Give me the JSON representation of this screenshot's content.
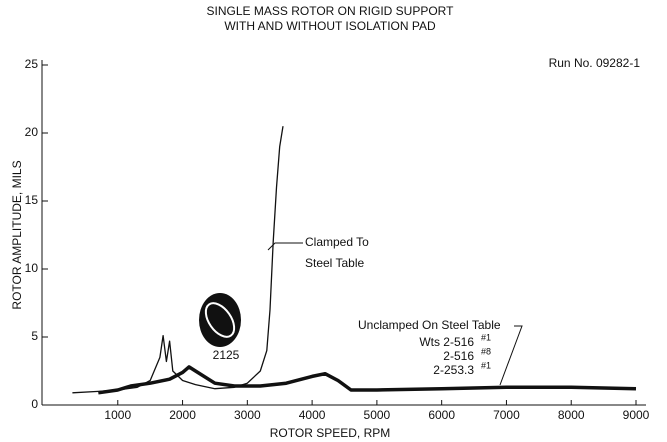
{
  "chart_data": {
    "type": "line",
    "title": "SINGLE MASS ROTOR ON RIGID SUPPORT",
    "subtitle": "WITH AND WITHOUT ISOLATION PAD",
    "x_label": "ROTOR SPEED, RPM",
    "y_label": "ROTOR AMPLITUDE, MILS",
    "annotations": [
      "Run No. 09282-1",
      "Clamped To",
      "Steel Table",
      "Unclamped On Steel Table",
      "Wts 2-516",
      "#1",
      "2-516",
      "#8",
      "2-253.3",
      "#1",
      "2125"
    ],
    "xlim": [
      0,
      9000
    ],
    "xticks": [
      1000,
      2000,
      3000,
      4000,
      5000,
      6000,
      7000,
      8000,
      9000
    ],
    "ylim": [
      0,
      25
    ],
    "yticks": [
      0,
      5,
      10,
      15,
      20,
      25
    ],
    "series": [
      {
        "color": "#111111",
        "x": [
          300,
          700,
          1000,
          1300,
          1500,
          1650,
          1700,
          1750,
          1800,
          1850,
          2000,
          2200,
          2500,
          2800,
          3000,
          3200,
          3300,
          3350,
          3400,
          3450,
          3500,
          3550
        ],
        "values": [
          0.9,
          1.0,
          1.1,
          1.3,
          1.8,
          3.5,
          5.1,
          3.2,
          4.7,
          2.5,
          1.8,
          1.5,
          1.2,
          1.3,
          1.6,
          2.5,
          4,
          7,
          12,
          16,
          19,
          20.5
        ]
      },
      {
        "color": "#111111",
        "x": [
          700,
          1000,
          1200,
          1500,
          1800,
          2000,
          2100,
          2200,
          2500,
          2800,
          3200,
          3600,
          4000,
          4200,
          4400,
          4600,
          5000,
          6000,
          7000,
          8000,
          9000
        ],
        "values": [
          0.9,
          1.1,
          1.4,
          1.6,
          1.9,
          2.4,
          2.8,
          2.5,
          1.6,
          1.4,
          1.4,
          1.6,
          2.1,
          2.3,
          1.8,
          1.1,
          1.1,
          1.2,
          1.3,
          1.3,
          1.2
        ]
      }
    ]
  }
}
